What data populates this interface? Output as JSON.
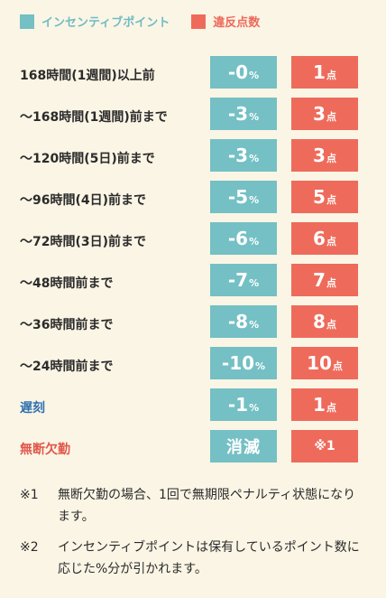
{
  "legend": {
    "incentive_label": "インセンティブポイント",
    "incentive_color": "#74c0c4",
    "violation_label": "違反点数",
    "violation_color": "#ee6b5b"
  },
  "rows": [
    {
      "label": "168時間(1週間)以上前",
      "incentive_num": "-0",
      "incentive_unit": "%",
      "violation_num": "1",
      "violation_unit": "点"
    },
    {
      "label": "〜168時間(1週間)前まで",
      "incentive_num": "-3",
      "incentive_unit": "%",
      "violation_num": "3",
      "violation_unit": "点"
    },
    {
      "label": "〜120時間(5日)前まで",
      "incentive_num": "-3",
      "incentive_unit": "%",
      "violation_num": "3",
      "violation_unit": "点"
    },
    {
      "label": "〜96時間(4日)前まで",
      "incentive_num": "-5",
      "incentive_unit": "%",
      "violation_num": "5",
      "violation_unit": "点"
    },
    {
      "label": "〜72時間(3日)前まで",
      "incentive_num": "-6",
      "incentive_unit": "%",
      "violation_num": "6",
      "violation_unit": "点"
    },
    {
      "label": "〜48時間前まで",
      "incentive_num": "-7",
      "incentive_unit": "%",
      "violation_num": "7",
      "violation_unit": "点"
    },
    {
      "label": "〜36時間前まで",
      "incentive_num": "-8",
      "incentive_unit": "%",
      "violation_num": "8",
      "violation_unit": "点"
    },
    {
      "label": "〜24時間前まで",
      "incentive_num": "-10",
      "incentive_unit": "%",
      "violation_num": "10",
      "violation_unit": "点"
    },
    {
      "label": "遅刻",
      "incentive_num": "-1",
      "incentive_unit": "%",
      "violation_num": "1",
      "violation_unit": "点"
    },
    {
      "label": "無断欠勤",
      "incentive_text": "消滅",
      "violation_text": "※1"
    }
  ],
  "notes": [
    {
      "key": "※1",
      "text": "無断欠勤の場合、1回で無期限ペナルティ状態になります。"
    },
    {
      "key": "※2",
      "text": "インセンティブポイントは保有しているポイント数に応じた%分が引かれます。"
    }
  ]
}
